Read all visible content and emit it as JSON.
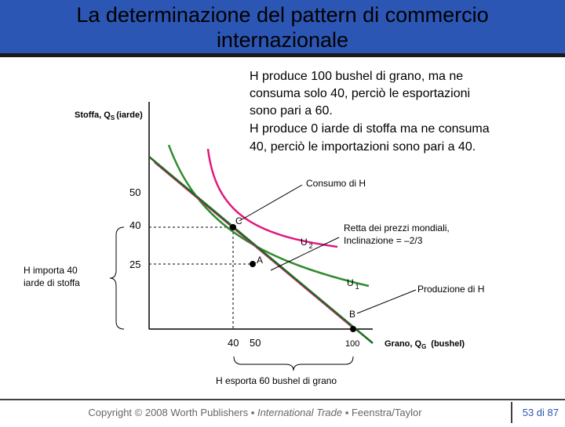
{
  "header": {
    "title": "La determinazione del pattern di commercio internazionale"
  },
  "notes": [
    "H produce 100 bushel di grano, ma ne",
    "consuma solo 40, perciò le esportazioni",
    "sono pari a 60.",
    "H produce 0 iarde di stoffa ma ne consuma",
    "40, perciò le importazioni sono pari a 40."
  ],
  "diagram": {
    "y_axis": {
      "label": "Stoffa, Q",
      "sub": "S",
      "unit": "(iarde)",
      "ticks": [
        "50",
        "40",
        "25"
      ]
    },
    "x_axis": {
      "label": "Grano, Q",
      "sub": "G",
      "unit": "(bushel)",
      "ticks": [
        "40",
        "50",
        "100"
      ]
    },
    "points": [
      "C",
      "A",
      "B"
    ],
    "curves": [
      {
        "label": "U",
        "sub": "2"
      },
      {
        "label": "U",
        "sub": "1"
      }
    ],
    "callouts": [
      "Consumo di H",
      "Retta dei prezzi mondiali,",
      "Inclinazione = –2/3",
      "Produzione di H"
    ],
    "import_note": [
      "H importa 40",
      "iarde di stoffa"
    ],
    "export_note": "H esporta 60 bushel di grano"
  },
  "footer": {
    "copyright": "Copyright © 2008 Worth Publishers ▪ ",
    "book": "International Trade",
    "authors": " ▪ Feenstra/Taylor",
    "page": "53 di 87"
  }
}
